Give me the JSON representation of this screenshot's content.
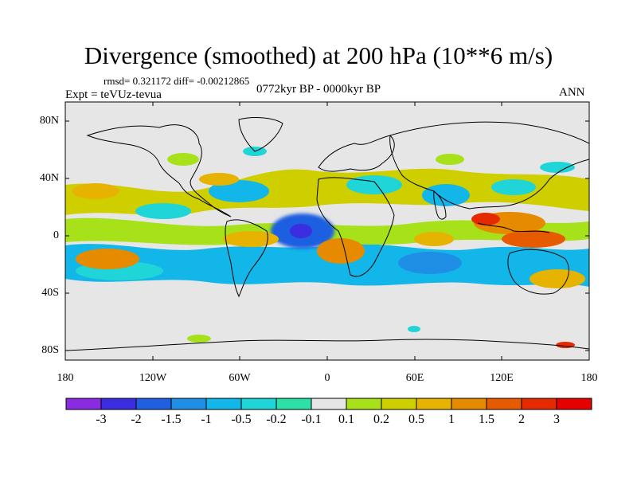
{
  "title": "Divergence (smoothed) at 200 hPa (10**6 m/s)",
  "stats": "rmsd= 0.321172  diff= -0.00212865",
  "experiment": "Expt = teVUz-tevua",
  "period": "0772kyr BP - 0000kyr BP",
  "season": "ANN",
  "lat_labels": [
    "80N",
    "40N",
    "0",
    "40S",
    "80S"
  ],
  "lon_labels": [
    "180",
    "120W",
    "60W",
    "0",
    "60E",
    "120E",
    "180"
  ],
  "colorbar": {
    "labels": [
      "-3",
      "-2",
      "-1.5",
      "-1",
      "-0.5",
      "-0.2",
      "-0.1",
      "0.1",
      "0.2",
      "0.5",
      "1",
      "1.5",
      "2",
      "3"
    ],
    "colors": [
      "#8a2be2",
      "#3a2ee0",
      "#1f5fe0",
      "#1f8fe6",
      "#13b6e8",
      "#1fd5d8",
      "#2ee0a8",
      "#e6e6e6",
      "#a6e11a",
      "#cfcf00",
      "#e6b400",
      "#e68a00",
      "#e65a00",
      "#e62a00",
      "#e60000"
    ]
  }
}
